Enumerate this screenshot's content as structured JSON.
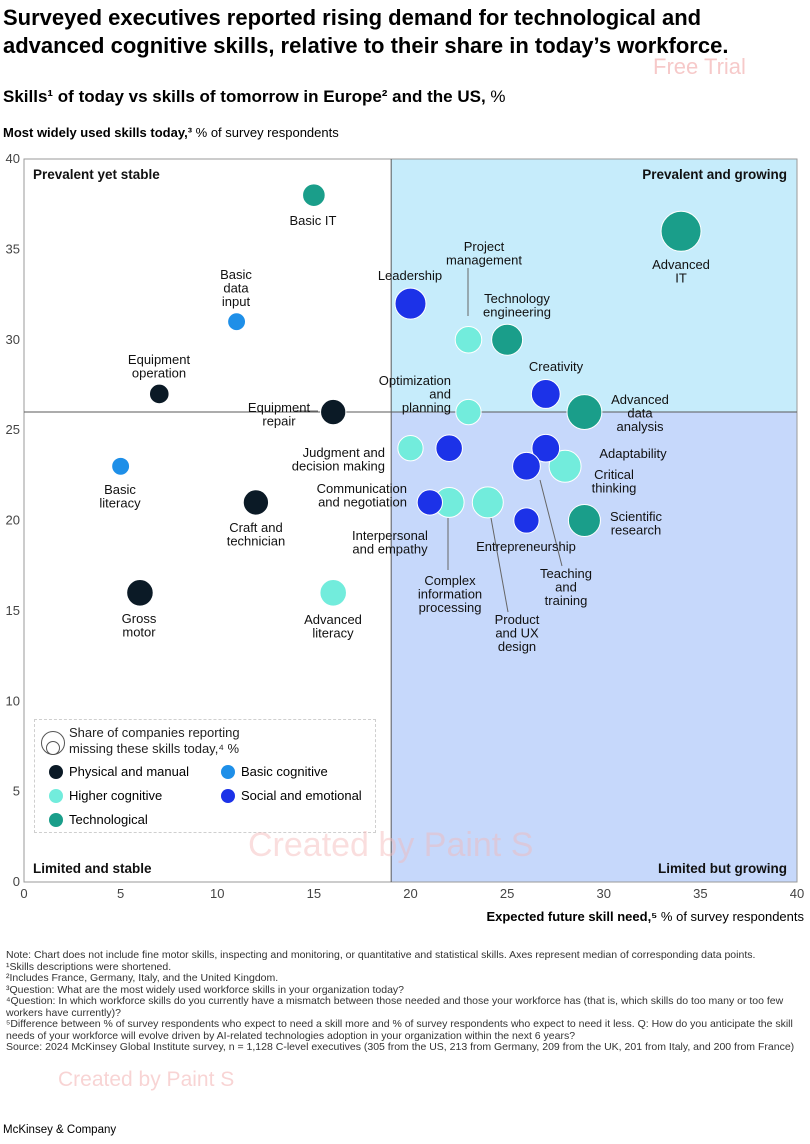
{
  "headline": "Surveyed executives reported rising demand for technological and advanced cognitive skills, relative to their share in today’s workforce.",
  "subtitle": {
    "bold": "Skills¹ of today vs skills of tomorrow in Europe² and the US,",
    "unit": "%"
  },
  "watermarks": [
    "Free Trial",
    "Created by Paint S",
    "Created by Paint S"
  ],
  "colors": {
    "physical": "#0b1a26",
    "basic_cognitive": "#1e8fe8",
    "higher_cognitive": "#72ecdc",
    "social": "#1c32e8",
    "technological": "#1a9e8a",
    "quadrant_top_right": "#c6ecfb",
    "quadrant_bottom_right": "#c6d8fb"
  },
  "legend": {
    "size_label": "Share of companies reporting missing these skills today,⁴ %",
    "items": [
      {
        "label": "Physical and manual",
        "color": "#0b1a26"
      },
      {
        "label": "Basic cognitive",
        "color": "#1e8fe8"
      },
      {
        "label": "Higher cognitive",
        "color": "#72ecdc"
      },
      {
        "label": "Social and emotional",
        "color": "#1c32e8"
      },
      {
        "label": "Technological",
        "color": "#1a9e8a"
      }
    ]
  },
  "notes": [
    "Note: Chart does not include fine motor skills, inspecting and monitoring, or quantitative and statistical skills. Axes represent median of corresponding data points.",
    "¹Skills descriptions were shortened.",
    "²Includes France, Germany, Italy, and the United Kingdom.",
    "³Question: What are the most widely used workforce skills in your organization today?",
    "⁴Question: In which workforce skills do you currently have a mismatch between those needed and those your workforce has (that is, which skills do too many or too few workers have currently)?",
    "⁵Difference between % of survey respondents who expect to need a skill more and % of survey respondents who expect to need it less. Q: How do you anticipate the skill needs of your workforce will evolve driven by AI-related technologies adoption in your organization within the next 6 years?",
    "Source: 2024 McKinsey Global Institute survey, n = 1,128 C-level executives (305 from the US, 213 from Germany, 209 from the UK, 201 from Italy, and 200 from France)"
  ],
  "brand": "McKinsey & Company",
  "chart_data": {
    "type": "scatter",
    "xlabel": "Expected future skill need,⁵",
    "xlabel_unit": "% of survey respondents",
    "ylabel": "Most widely used skills today,³",
    "ylabel_unit": "% of survey respondents",
    "xlim": [
      0,
      40
    ],
    "ylim": [
      0,
      40
    ],
    "xticks": [
      0,
      5,
      10,
      15,
      20,
      25,
      30,
      35,
      40
    ],
    "yticks": [
      0,
      5,
      10,
      15,
      20,
      25,
      30,
      35,
      40
    ],
    "x_median": 19,
    "y_median": 26,
    "quadrants": [
      "Prevalent yet stable",
      "Prevalent and growing",
      "Limited and stable",
      "Limited but growing"
    ],
    "points": [
      {
        "label": "Basic IT",
        "x": 15,
        "y": 38,
        "category": "technological",
        "size": 8
      },
      {
        "label": "Advanced IT",
        "x": 34,
        "y": 36,
        "category": "technological",
        "size": 25
      },
      {
        "label": "Technology engineering",
        "x": 25,
        "y": 30,
        "category": "technological",
        "size": 15
      },
      {
        "label": "Advanced data analysis",
        "x": 29,
        "y": 26,
        "category": "technological",
        "size": 19
      },
      {
        "label": "Scientific research",
        "x": 29,
        "y": 20,
        "category": "technological",
        "size": 16
      },
      {
        "label": "Basic data input",
        "x": 11,
        "y": 31,
        "category": "basic_cognitive",
        "size": 5
      },
      {
        "label": "Basic literacy",
        "x": 5,
        "y": 23,
        "category": "basic_cognitive",
        "size": 5
      },
      {
        "label": "Project management",
        "x": 23,
        "y": 30,
        "category": "higher_cognitive",
        "size": 11
      },
      {
        "label": "Optimization and planning",
        "x": 23,
        "y": 26,
        "category": "higher_cognitive",
        "size": 10
      },
      {
        "label": "Judgment and decision making",
        "x": 20,
        "y": 24,
        "category": "higher_cognitive",
        "size": 10
      },
      {
        "label": "Critical thinking",
        "x": 28,
        "y": 23,
        "category": "higher_cognitive",
        "size": 16
      },
      {
        "label": "Complex information processing",
        "x": 22,
        "y": 21,
        "category": "higher_cognitive",
        "size": 14
      },
      {
        "label": "Product and UX design",
        "x": 24,
        "y": 21,
        "category": "higher_cognitive",
        "size": 15
      },
      {
        "label": "Advanced literacy",
        "x": 16,
        "y": 16,
        "category": "higher_cognitive",
        "size": 11
      },
      {
        "label": "Leadership",
        "x": 20,
        "y": 32,
        "category": "social",
        "size": 15
      },
      {
        "label": "Creativity",
        "x": 27,
        "y": 27,
        "category": "social",
        "size": 13
      },
      {
        "label": "Adaptability",
        "x": 27,
        "y": 24,
        "category": "social",
        "size": 12
      },
      {
        "label": "Communication and negotiation",
        "x": 22,
        "y": 24,
        "category": "social",
        "size": 11
      },
      {
        "label": "Teaching and training",
        "x": 26,
        "y": 23,
        "category": "social",
        "size": 12
      },
      {
        "label": "Interpersonal and empathy",
        "x": 21,
        "y": 21,
        "category": "social",
        "size": 10
      },
      {
        "label": "Entrepreneurship",
        "x": 26,
        "y": 20,
        "category": "social",
        "size": 10
      },
      {
        "label": "Equipment operation",
        "x": 7,
        "y": 27,
        "category": "physical",
        "size": 6
      },
      {
        "label": "Equipment repair",
        "x": 16,
        "y": 26,
        "category": "physical",
        "size": 10
      },
      {
        "label": "Craft and technician",
        "x": 12,
        "y": 21,
        "category": "physical",
        "size": 10
      },
      {
        "label": "Gross motor",
        "x": 6,
        "y": 16,
        "category": "physical",
        "size": 11
      }
    ]
  }
}
